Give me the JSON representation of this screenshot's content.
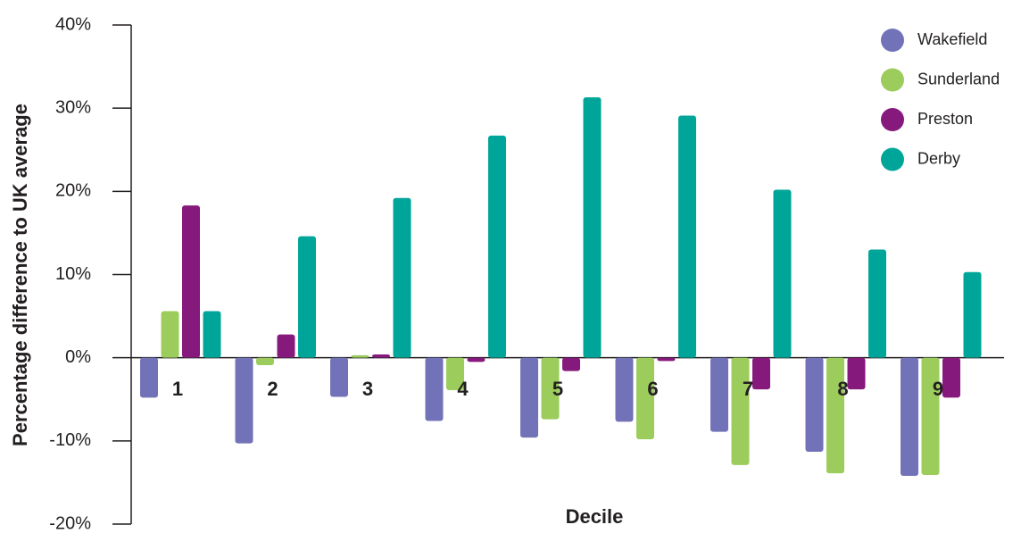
{
  "chart_data": {
    "type": "bar",
    "y_label": "Percentage difference to UK average",
    "x_label": "Decile",
    "categories": [
      "1",
      "2",
      "3",
      "4",
      "5",
      "6",
      "7",
      "8",
      "9"
    ],
    "series": [
      {
        "name": "Wakefield",
        "color": "#7272b8",
        "values": [
          -4.8,
          -10.3,
          -4.7,
          -7.6,
          -9.6,
          -7.7,
          -8.9,
          -11.3,
          -14.2
        ]
      },
      {
        "name": "Sunderland",
        "color": "#9ccc5c",
        "values": [
          5.6,
          -0.9,
          0.3,
          -3.9,
          -7.4,
          -9.8,
          -12.9,
          -13.9,
          -14.1
        ]
      },
      {
        "name": "Preston",
        "color": "#861a7c",
        "values": [
          18.3,
          2.8,
          0.4,
          -0.5,
          -1.6,
          -0.4,
          -3.8,
          -3.8,
          -4.8
        ]
      },
      {
        "name": "Derby",
        "color": "#00a59a",
        "values": [
          5.6,
          14.6,
          19.2,
          26.7,
          31.3,
          29.1,
          20.2,
          13.0,
          10.3
        ]
      }
    ],
    "ylim": [
      -20,
      40
    ],
    "yticks": [
      {
        "value": -20,
        "label": "-20%"
      },
      {
        "value": -10,
        "label": "-10%"
      },
      {
        "value": 0,
        "label": "0%"
      },
      {
        "value": 10,
        "label": "10%"
      },
      {
        "value": 20,
        "label": "20%"
      },
      {
        "value": 30,
        "label": "30%"
      },
      {
        "value": 40,
        "label": "40%"
      }
    ]
  }
}
